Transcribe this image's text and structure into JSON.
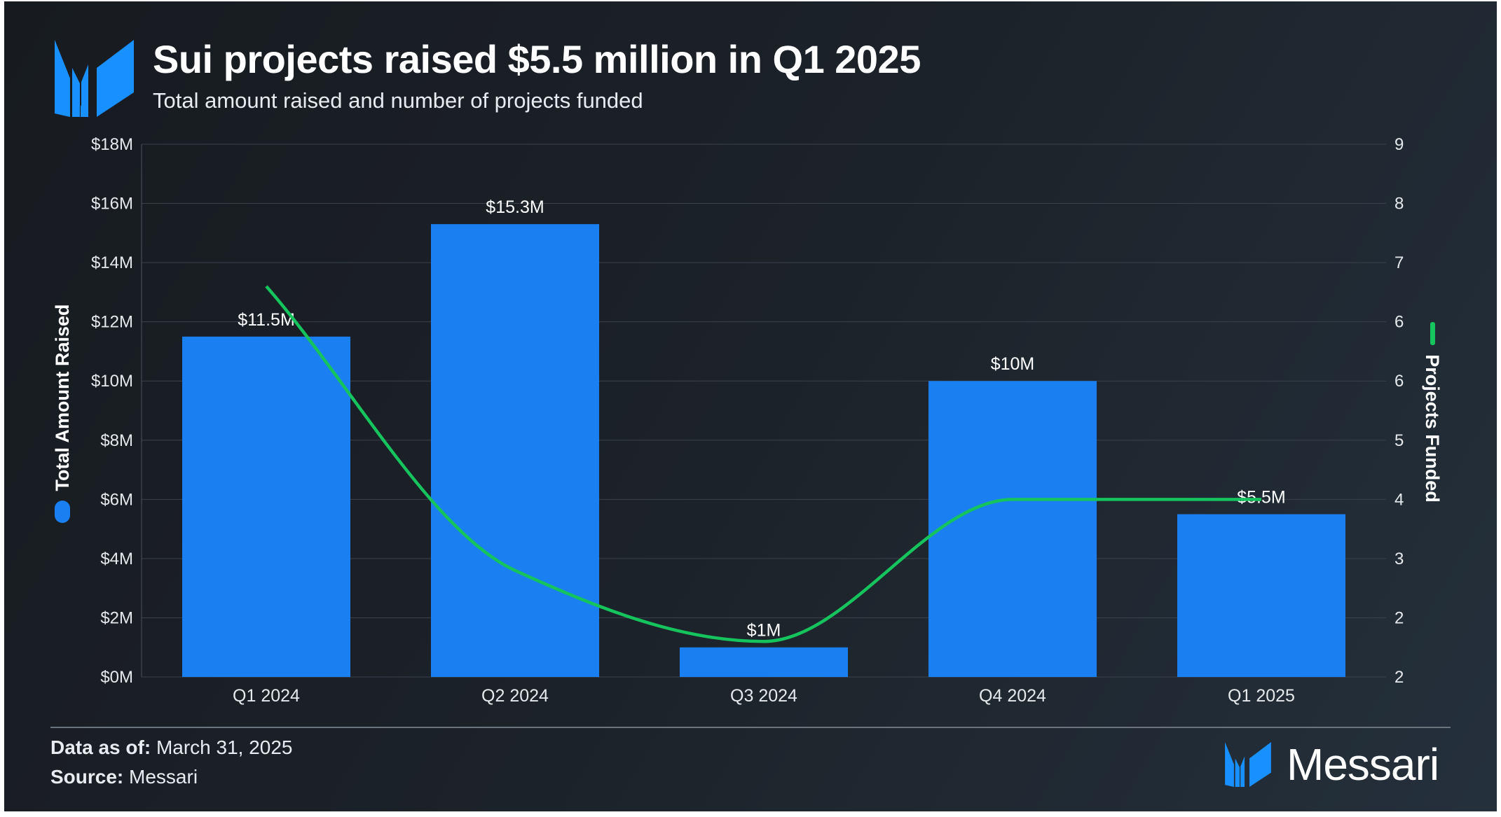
{
  "header": {
    "title": "Sui projects raised $5.5 million in Q1 2025",
    "subtitle": "Total amount raised and number of projects funded"
  },
  "colors": {
    "bar": "#1a7ff0",
    "line": "#16c45e",
    "logo": "#1890ff"
  },
  "chart_data": {
    "type": "bar+line",
    "title": "Sui projects raised $5.5 million in Q1 2025",
    "subtitle": "Total amount raised and number of projects funded",
    "categories": [
      "Q1 2024",
      "Q2 2024",
      "Q3 2024",
      "Q4 2024",
      "Q1 2025"
    ],
    "series": [
      {
        "name": "Total Amount Raised",
        "type": "bar",
        "axis": "left",
        "values": [
          11.5,
          15.3,
          1,
          10,
          5.5
        ],
        "data_labels": [
          "$11.5M",
          "$15.3M",
          "$1M",
          "$10M",
          "$5.5M"
        ]
      },
      {
        "name": "Projects Funded",
        "type": "line",
        "axis": "right",
        "values": [
          7,
          3,
          2,
          4,
          4
        ]
      }
    ],
    "ylabel": "Total Amount Raised",
    "y2label": "Projects Funded",
    "ylim": [
      0,
      18
    ],
    "y2lim": [
      1.5,
      9
    ],
    "yticks": [
      "$0M",
      "$2M",
      "$4M",
      "$6M",
      "$8M",
      "$10M",
      "$12M",
      "$14M",
      "$16M",
      "$18M"
    ],
    "y2ticks": [
      "2",
      "2",
      "3",
      "4",
      "5",
      "6",
      "6",
      "7",
      "8",
      "9"
    ],
    "grid": true,
    "legend": "axis-titles"
  },
  "footer": {
    "data_label": "Data as of:",
    "data_value": "March 31, 2025",
    "source_label": "Source:",
    "source_value": "Messari",
    "brand": "Messari"
  }
}
